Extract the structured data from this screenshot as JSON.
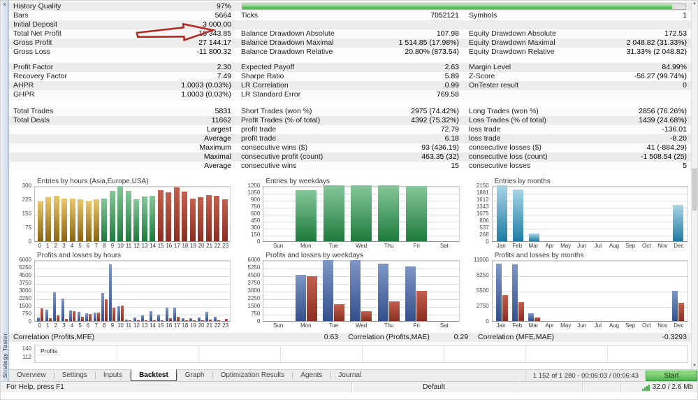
{
  "window": {
    "close_label": "×",
    "panel_title": "Strategy Tester",
    "status_help": "For Help, press F1",
    "status_profile": "Default",
    "status_memory": "32.0 / 2.6 Mb",
    "progress_readout": "1 152 of 1 280  -  00:06:03 / 00:06:43",
    "start_button": "Start"
  },
  "tabs": [
    {
      "label": "Overview",
      "active": false
    },
    {
      "label": "Settings",
      "active": false
    },
    {
      "label": "Inputs",
      "active": false
    },
    {
      "label": "Backtest",
      "active": true
    },
    {
      "label": "Graph",
      "active": false
    },
    {
      "label": "Optimization Results",
      "active": false
    },
    {
      "label": "Agents",
      "active": false
    },
    {
      "label": "Journal",
      "active": false
    }
  ],
  "stats": {
    "history_quality_percent": 97,
    "blocks": [
      {
        "rows": [
          [
            {
              "l": "History Quality",
              "v": "97%"
            },
            {
              "progress": true
            }
          ],
          [
            {
              "l": "Bars",
              "v": "5664"
            },
            {
              "l": "Ticks",
              "v": "7052121"
            },
            {
              "l": "Symbols",
              "v": "1"
            }
          ],
          [
            {
              "l": "Initial Deposit",
              "v": "3 000.00"
            },
            null,
            null
          ],
          [
            {
              "l": "Total Net Profit",
              "v": "15 343.85"
            },
            {
              "l": "Balance Drawdown Absolute",
              "v": "107.98"
            },
            {
              "l": "Equity Drawdown Absolute",
              "v": "172.53"
            }
          ],
          [
            {
              "l": "Gross Profit",
              "v": "27 144.17"
            },
            {
              "l": "Balance Drawdown Maximal",
              "v": "1 514.85 (17.98%)"
            },
            {
              "l": "Equity Drawdown Maximal",
              "v": "2 048.82 (31.33%)"
            }
          ],
          [
            {
              "l": "Gross Loss",
              "v": "-11 800.32"
            },
            {
              "l": "Balance Drawdown Relative",
              "v": "20.80% (873.54)"
            },
            {
              "l": "Equity Drawdown Relative",
              "v": "31.33% (2 048.82)"
            }
          ]
        ]
      },
      {
        "rows": [
          [
            {
              "l": "Profit Factor",
              "v": "2.30"
            },
            {
              "l": "Expected Payoff",
              "v": "2.63"
            },
            {
              "l": "Margin Level",
              "v": "84.99%"
            }
          ],
          [
            {
              "l": "Recovery Factor",
              "v": "7.49"
            },
            {
              "l": "Sharpe Ratio",
              "v": "5.89"
            },
            {
              "l": "Z-Score",
              "v": "-56.27 (99.74%)"
            }
          ],
          [
            {
              "l": "AHPR",
              "v": "1.0003 (0.03%)"
            },
            {
              "l": "LR Correlation",
              "v": "0.99"
            },
            {
              "l": "OnTester result",
              "v": "0"
            }
          ],
          [
            {
              "l": "GHPR",
              "v": "1.0003 (0.03%)"
            },
            {
              "l": "LR Standard Error",
              "v": "769.58"
            },
            null
          ]
        ]
      },
      {
        "rows": [
          [
            {
              "l": "Total Trades",
              "v": "5831"
            },
            {
              "l": "Short Trades (won %)",
              "v": "2975 (74.42%)"
            },
            {
              "l": "Long Trades (won %)",
              "v": "2856 (76.26%)"
            }
          ],
          [
            {
              "l": "Total Deals",
              "v": "11662"
            },
            {
              "l": "Profit Trades (% of total)",
              "v": "4392 (75.32%)"
            },
            {
              "l": "Loss Trades (% of total)",
              "v": "1439 (24.68%)"
            }
          ],
          [
            {
              "l": "",
              "v": "Largest"
            },
            {
              "l": "profit trade",
              "v": "72.79"
            },
            {
              "l": "loss trade",
              "v": "-136.01"
            }
          ],
          [
            {
              "l": "",
              "v": "Average"
            },
            {
              "l": "profit trade",
              "v": "6.18"
            },
            {
              "l": "loss trade",
              "v": "-8.20"
            }
          ],
          [
            {
              "l": "",
              "v": "Maximum"
            },
            {
              "l": "consecutive wins ($)",
              "v": "93 (436.19)"
            },
            {
              "l": "consecutive losses ($)",
              "v": "41 (-884.29)"
            }
          ],
          [
            {
              "l": "",
              "v": "Maximal"
            },
            {
              "l": "consecutive profit (count)",
              "v": "463.35 (32)"
            },
            {
              "l": "consecutive loss (count)",
              "v": "-1 508.54 (25)"
            }
          ],
          [
            {
              "l": "",
              "v": "Average"
            },
            {
              "l": "consecutive wins",
              "v": "15"
            },
            {
              "l": "consecutive losses",
              "v": "5"
            }
          ]
        ]
      }
    ]
  },
  "correlations": [
    {
      "label": "Correlation (Profits,MFE)",
      "value": "0.63"
    },
    {
      "label": "Correlation (Profits,MAE)",
      "value": "0.29"
    },
    {
      "label": "Correlation (MFE,MAE)",
      "value": "-0.3293"
    }
  ],
  "mini_chart": {
    "yticks": [
      "140",
      "112"
    ],
    "legend": "Profits"
  },
  "colors": {
    "gold": [
      "#eac76e",
      "#8a6412"
    ],
    "green": [
      "#86c79a",
      "#1e7a3c"
    ],
    "teal": [
      "#a8d6e6",
      "#1e7aa2"
    ],
    "blue": [
      "#7e97c6",
      "#344f8c"
    ],
    "red": [
      "#c4604e",
      "#8a2f22"
    ],
    "progress_green": "#4fb54f",
    "arrow_red": "#b22a22",
    "start_green": "#4fb44f"
  },
  "chart_data": [
    {
      "type": "bar",
      "title": "Entries by hours (Asia,Europe,USA)",
      "categories": [
        "0",
        "1",
        "2",
        "3",
        "4",
        "5",
        "6",
        "7",
        "8",
        "9",
        "10",
        "11",
        "12",
        "13",
        "14",
        "15",
        "16",
        "17",
        "18",
        "19",
        "20",
        "21",
        "22",
        "23"
      ],
      "values": [
        213,
        236,
        242,
        228,
        229,
        226,
        214,
        226,
        230,
        270,
        297,
        270,
        226,
        240,
        242,
        272,
        263,
        290,
        266,
        228,
        237,
        249,
        242,
        226
      ],
      "bar_colors": [
        "gold",
        "gold",
        "gold",
        "gold",
        "gold",
        "gold",
        "gold",
        "gold",
        "green",
        "green",
        "green",
        "green",
        "green",
        "green",
        "green",
        "red",
        "red",
        "red",
        "red",
        "red",
        "red",
        "red",
        "red",
        "red"
      ],
      "yticks": [
        0,
        75,
        150,
        225,
        300
      ],
      "ymax": 300,
      "grid": true,
      "legend_position": "none"
    },
    {
      "type": "bar",
      "title": "Entries by weekdays",
      "categories": [
        "Sun",
        "Mon",
        "Tue",
        "Wed",
        "Thu",
        "Fri",
        "Sat"
      ],
      "values": [
        0,
        1100,
        1200,
        1200,
        1200,
        1180,
        0
      ],
      "color": "green",
      "yticks": [
        0,
        150,
        300,
        450,
        600,
        750,
        900,
        1050,
        1200
      ],
      "ymax": 1200,
      "grid": true,
      "legend_position": "none"
    },
    {
      "type": "bar",
      "title": "Entries by months",
      "categories": [
        "Jan",
        "Feb",
        "Mar",
        "Apr",
        "May",
        "Jun",
        "Jul",
        "Aug",
        "Sep",
        "Oct",
        "Nov",
        "Dec"
      ],
      "values": [
        2150,
        1990,
        300,
        0,
        0,
        0,
        0,
        0,
        0,
        0,
        0,
        1390
      ],
      "color": "teal",
      "yticks": [
        0,
        268,
        537,
        806,
        1075,
        1343,
        1612,
        1881,
        2150
      ],
      "ymax": 2150,
      "grid": true,
      "legend_position": "none"
    },
    {
      "type": "bar-pair",
      "title": "Profits and losses by hours",
      "categories": [
        "0",
        "1",
        "2",
        "3",
        "4",
        "5",
        "6",
        "7",
        "8",
        "9",
        "10",
        "11",
        "12",
        "13",
        "14",
        "15",
        "16",
        "17",
        "18",
        "19",
        "20",
        "21",
        "22",
        "23"
      ],
      "series": [
        {
          "name": "profits",
          "color": "blue",
          "values": [
            350,
            1100,
            2800,
            2200,
            1000,
            900,
            780,
            800,
            2750,
            5500,
            1450,
            150,
            350,
            550,
            950,
            620,
            1280,
            1270,
            250,
            280,
            330,
            900,
            420,
            0
          ]
        },
        {
          "name": "losses",
          "color": "red",
          "values": [
            1200,
            300,
            520,
            200,
            950,
            400,
            650,
            850,
            2100,
            1300,
            1500,
            50,
            60,
            100,
            80,
            80,
            250,
            380,
            60,
            60,
            80,
            130,
            60,
            200
          ]
        }
      ],
      "yticks": [
        0,
        750,
        1500,
        2250,
        3000,
        3750,
        4500,
        5250,
        6000
      ],
      "ymax": 6000,
      "grid": true,
      "legend_position": "none"
    },
    {
      "type": "bar-pair",
      "title": "Profits and losses by weekdays",
      "categories": [
        "Sun",
        "Mon",
        "Tue",
        "Wed",
        "Thu",
        "Fri",
        "Sat"
      ],
      "series": [
        {
          "name": "profits",
          "color": "blue",
          "values": [
            0,
            4480,
            5900,
            5920,
            5600,
            5350,
            0
          ]
        },
        {
          "name": "losses",
          "color": "red",
          "values": [
            0,
            4350,
            1620,
            980,
            1900,
            2900,
            0
          ]
        }
      ],
      "yticks": [
        0,
        750,
        1500,
        2250,
        3000,
        3750,
        4500,
        5250,
        6000
      ],
      "ymax": 6000,
      "grid": true,
      "legend_position": "none"
    },
    {
      "type": "bar-pair",
      "title": "Profits and losses by months",
      "categories": [
        "Jan",
        "Feb",
        "Mar",
        "Apr",
        "May",
        "Jun",
        "Jul",
        "Aug",
        "Sep",
        "Oct",
        "Nov",
        "Dec"
      ],
      "series": [
        {
          "name": "profits",
          "color": "blue",
          "values": [
            10200,
            10100,
            1400,
            0,
            0,
            0,
            0,
            0,
            0,
            0,
            0,
            5400
          ]
        },
        {
          "name": "losses",
          "color": "red",
          "values": [
            4600,
            3400,
            600,
            0,
            0,
            0,
            0,
            0,
            0,
            0,
            0,
            3200
          ]
        }
      ],
      "yticks": [
        0,
        2750,
        5500,
        8250,
        11000
      ],
      "ymax": 11000,
      "grid": true,
      "legend_position": "none"
    }
  ]
}
